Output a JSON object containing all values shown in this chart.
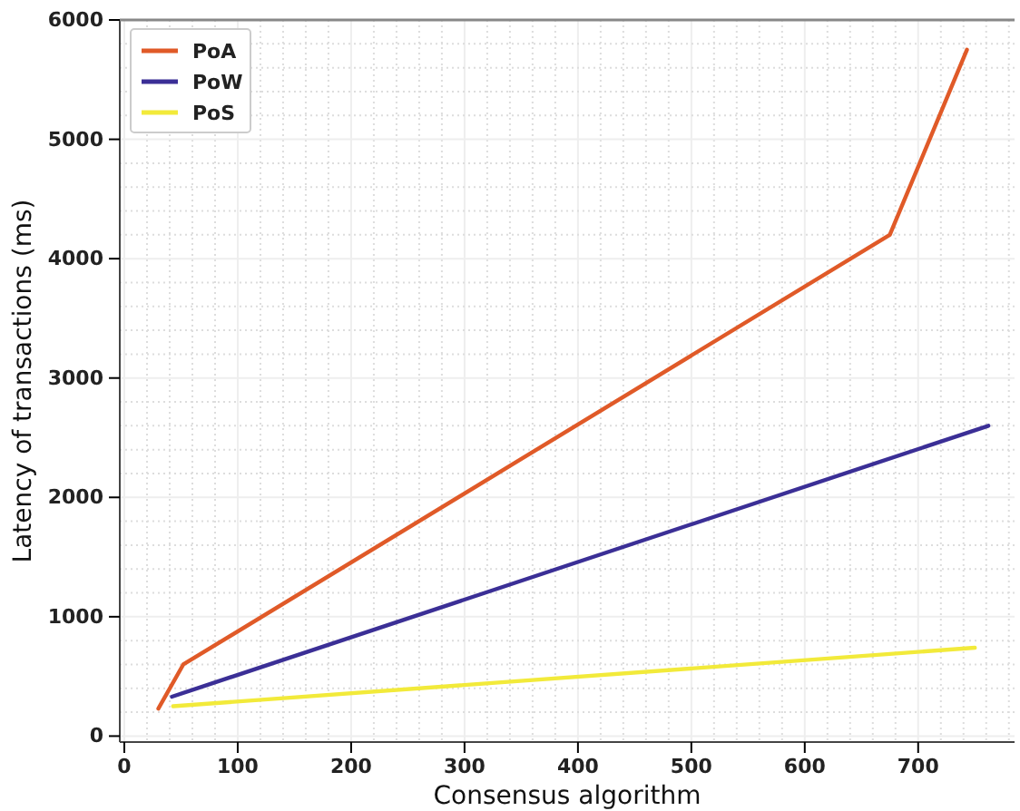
{
  "chart_data": {
    "type": "line",
    "xlabel": "Consensus algorithm",
    "ylabel": "Latency of transactions (ms)",
    "xlim": [
      -4,
      785
    ],
    "xticks": [
      0,
      100,
      200,
      300,
      400,
      500,
      600,
      700
    ],
    "ylim": [
      -50,
      6000
    ],
    "yticks": [
      0,
      1000,
      2000,
      3000,
      4000,
      5000,
      6000
    ],
    "grid": true,
    "legend": "top left",
    "series": [
      {
        "name": "PoA",
        "color": "#e05a28",
        "x": [
          30,
          52,
          675,
          743
        ],
        "values": [
          230,
          600,
          4200,
          5750
        ]
      },
      {
        "name": "PoW",
        "color": "#3b2f96",
        "x": [
          42,
          762
        ],
        "values": [
          330,
          2600
        ]
      },
      {
        "name": "PoS",
        "color": "#f2ea3a",
        "x": [
          43,
          750
        ],
        "values": [
          250,
          740
        ]
      }
    ]
  }
}
